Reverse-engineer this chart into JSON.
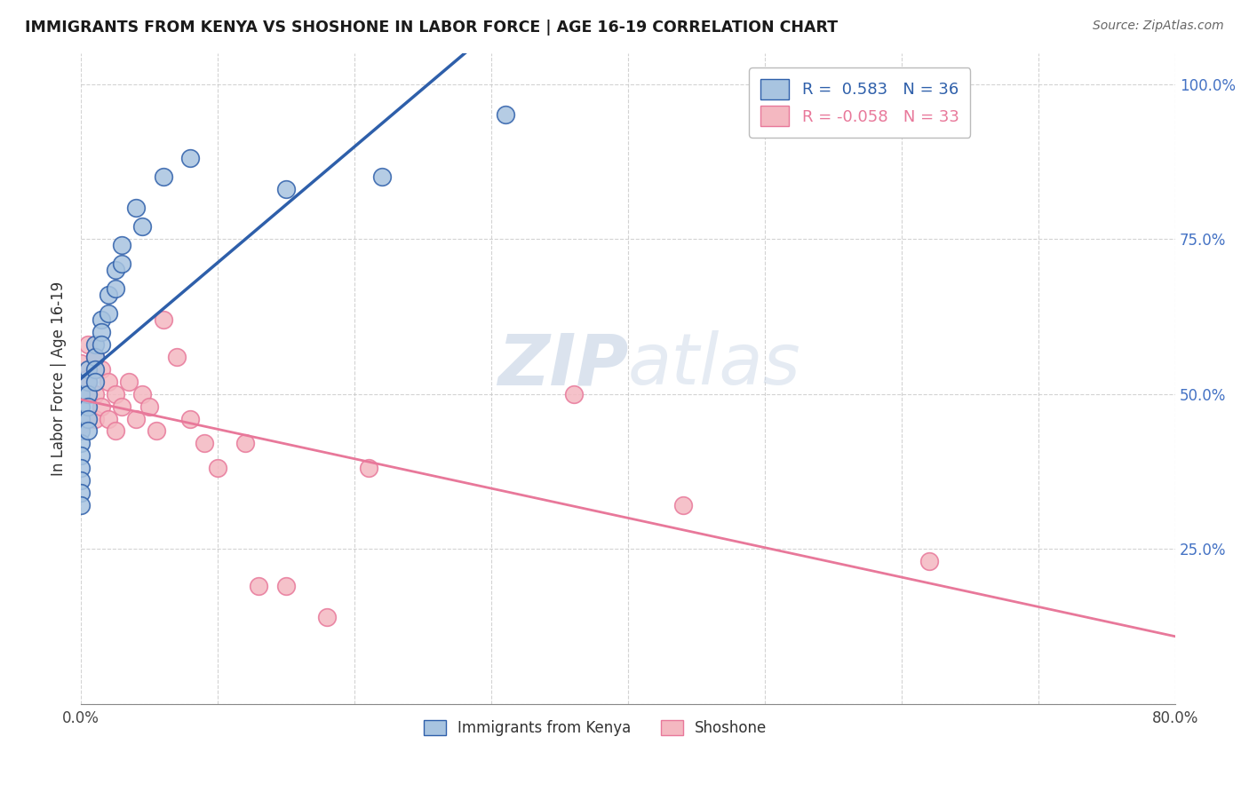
{
  "title": "IMMIGRANTS FROM KENYA VS SHOSHONE IN LABOR FORCE | AGE 16-19 CORRELATION CHART",
  "source": "Source: ZipAtlas.com",
  "ylabel": "In Labor Force | Age 16-19",
  "xlim": [
    0.0,
    0.8
  ],
  "ylim": [
    0.0,
    1.05
  ],
  "xtick_positions": [
    0.0,
    0.1,
    0.2,
    0.3,
    0.4,
    0.5,
    0.6,
    0.7,
    0.8
  ],
  "xticklabels": [
    "0.0%",
    "",
    "",
    "",
    "",
    "",
    "",
    "",
    "80.0%"
  ],
  "ytick_positions": [
    0.0,
    0.25,
    0.5,
    0.75,
    1.0
  ],
  "yticklabels": [
    "",
    "25.0%",
    "50.0%",
    "75.0%",
    "100.0%"
  ],
  "kenya_R": 0.583,
  "kenya_N": 36,
  "shoshone_R": -0.058,
  "shoshone_N": 33,
  "kenya_color": "#a8c4e0",
  "shoshone_color": "#f4b8c1",
  "kenya_line_color": "#2e5faa",
  "shoshone_line_color": "#e8789a",
  "watermark_color": "#ccd8e8",
  "kenya_x": [
    0.0,
    0.0,
    0.0,
    0.0,
    0.0,
    0.0,
    0.0,
    0.0,
    0.0,
    0.0,
    0.005,
    0.005,
    0.005,
    0.005,
    0.005,
    0.005,
    0.01,
    0.01,
    0.01,
    0.01,
    0.015,
    0.015,
    0.015,
    0.02,
    0.02,
    0.025,
    0.025,
    0.03,
    0.03,
    0.04,
    0.045,
    0.06,
    0.08,
    0.15,
    0.22,
    0.31
  ],
  "kenya_y": [
    0.5,
    0.48,
    0.46,
    0.44,
    0.42,
    0.4,
    0.38,
    0.36,
    0.34,
    0.32,
    0.54,
    0.52,
    0.5,
    0.48,
    0.46,
    0.44,
    0.58,
    0.56,
    0.54,
    0.52,
    0.62,
    0.6,
    0.58,
    0.66,
    0.63,
    0.7,
    0.67,
    0.74,
    0.71,
    0.8,
    0.77,
    0.85,
    0.88,
    0.83,
    0.85,
    0.95
  ],
  "shoshone_x": [
    0.0,
    0.0,
    0.0,
    0.005,
    0.005,
    0.01,
    0.01,
    0.01,
    0.015,
    0.015,
    0.02,
    0.02,
    0.025,
    0.025,
    0.03,
    0.035,
    0.04,
    0.045,
    0.05,
    0.055,
    0.06,
    0.07,
    0.08,
    0.09,
    0.1,
    0.12,
    0.13,
    0.15,
    0.18,
    0.21,
    0.36,
    0.44,
    0.62
  ],
  "shoshone_y": [
    0.55,
    0.5,
    0.45,
    0.58,
    0.52,
    0.56,
    0.5,
    0.46,
    0.54,
    0.48,
    0.52,
    0.46,
    0.5,
    0.44,
    0.48,
    0.52,
    0.46,
    0.5,
    0.48,
    0.44,
    0.62,
    0.56,
    0.46,
    0.42,
    0.38,
    0.42,
    0.19,
    0.19,
    0.14,
    0.38,
    0.5,
    0.32,
    0.23
  ]
}
